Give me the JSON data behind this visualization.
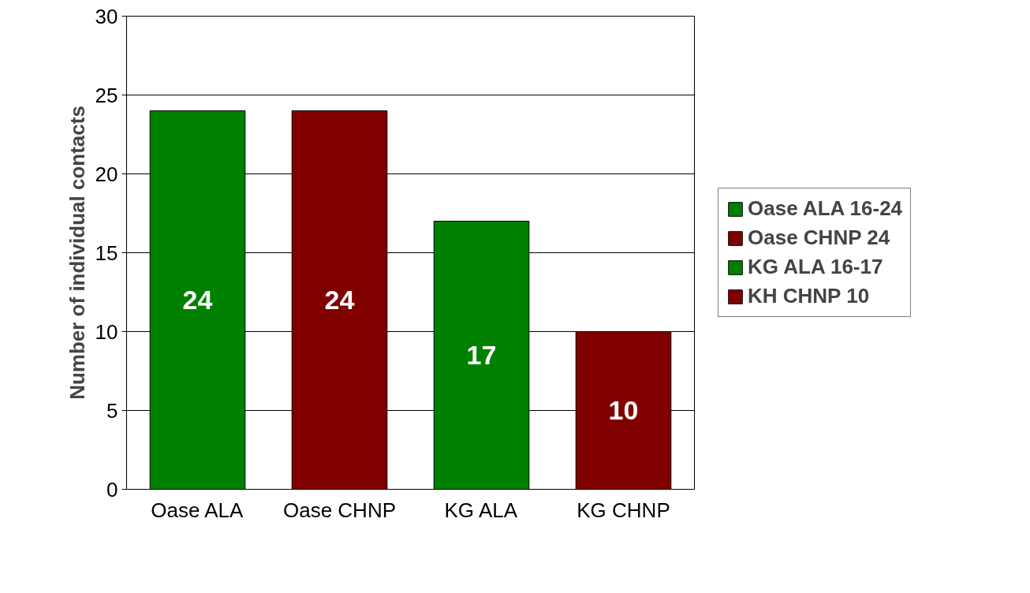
{
  "chart_data": {
    "type": "bar",
    "ylabel": "Number of individual contacts",
    "categories": [
      "Oase ALA",
      "Oase CHNP",
      "KG ALA",
      "KG CHNP"
    ],
    "series": [
      {
        "name": "Oase ALA 16-24",
        "color": "#008000",
        "values": [
          24,
          null,
          null,
          null
        ]
      },
      {
        "name": "Oase CHNP 24",
        "color": "#800000",
        "values": [
          null,
          24,
          null,
          null
        ]
      },
      {
        "name": "KG ALA 16-17",
        "color": "#008000",
        "values": [
          null,
          null,
          17,
          null
        ]
      },
      {
        "name": "KH CHNP 10",
        "color": "#800000",
        "values": [
          null,
          null,
          null,
          10
        ]
      }
    ],
    "ylim": [
      0,
      30
    ],
    "yticks": [
      0,
      5,
      10,
      15,
      20,
      25,
      30
    ],
    "grid": "y",
    "legend": "right",
    "data_labels": true
  }
}
